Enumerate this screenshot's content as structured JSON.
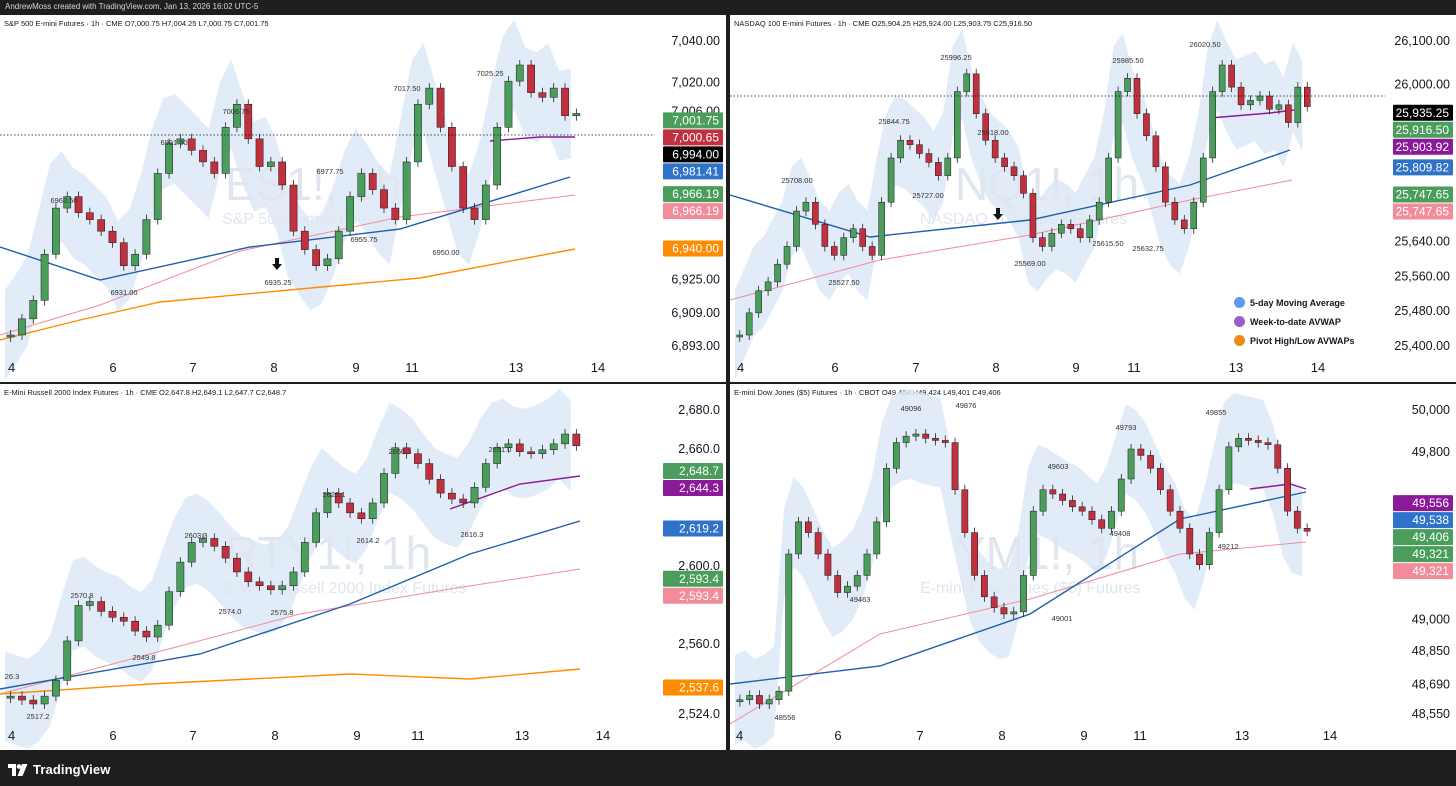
{
  "header": {
    "credit": "AndrewMoss created with TradingView.com, Jan 13, 2026 16:02 UTC-5"
  },
  "footer": {
    "brand": "TradingView"
  },
  "legend": {
    "items": [
      {
        "label": "5-day Moving Average",
        "color": "#5b9bf0"
      },
      {
        "label": "Week-to-date AVWAP",
        "color": "#9a5fc6"
      },
      {
        "label": "Pivot High/Low AVWAPs",
        "color": "#ee8a14"
      }
    ]
  },
  "colors": {
    "up": "#4a9d5b",
    "down": "#c0303f",
    "ma": "#1f5fa9",
    "avwap": "#8b1a9a",
    "pivot": "#ff8c00",
    "band": "#dde9f8",
    "pivotLow": "#f28b9a"
  },
  "charts": [
    {
      "id": "es",
      "title": "S&P 500 E-mini Futures · 1h · CME  O7,000.75  H7,004.25  L7,000.75  C7,001.75",
      "watermark": "ES1!, 1h",
      "subtitle": "S&P 500 E-mini Futures",
      "chart_data": {
        "type": "candlestick",
        "y_ticks": [
          "7,040.00",
          "7,020.00",
          "7,006.00",
          "6,994.00",
          "6,981.41",
          "6,966.19",
          "6,940.00",
          "6,925.00",
          "6,909.00",
          "6,893.00"
        ],
        "x_ticks": [
          "4",
          "6",
          "7",
          "8",
          "9",
          "11",
          "13",
          "14"
        ],
        "annotations": [
          "6963.50",
          "6931.00",
          "6991.50",
          "7006.75",
          "6977.75",
          "6935.25",
          "6955.75",
          "7017.50",
          "6950.00",
          "7025.25"
        ],
        "price_tags": [
          {
            "value": "7,001.75",
            "color": "#4a9d5b"
          },
          {
            "value": "7,000.65",
            "color": "#c0303f"
          },
          {
            "value": "6,994.00",
            "color": "#000000"
          },
          {
            "value": "6,981.41",
            "color": "#2e73c9"
          },
          {
            "value": "6,966.19",
            "color": "#4a9d5b"
          },
          {
            "value": "6,966.19",
            "color": "#f28b9a"
          },
          {
            "value": "6,940.00",
            "color": "#ff8c00"
          }
        ],
        "close_path": [
          6905,
          6912,
          6920,
          6940,
          6960,
          6965,
          6958,
          6955,
          6950,
          6945,
          6935,
          6940,
          6955,
          6975,
          6988,
          6990,
          6985,
          6980,
          6975,
          6995,
          7005,
          6990,
          6978,
          6980,
          6970,
          6950,
          6942,
          6935,
          6938,
          6950,
          6965,
          6975,
          6968,
          6960,
          6955,
          6980,
          7005,
          7012,
          6995,
          6978,
          6960,
          6955,
          6970,
          6995,
          7015,
          7022,
          7010,
          7008,
          7012,
          7000,
          7001
        ]
      }
    },
    {
      "id": "nq",
      "title": "NASDAQ 100 E-mini Futures · 1h · CME  O25,904.25  H25,924.00  L25,903.75  C25,916.50",
      "watermark": "NQ1!, 1h",
      "subtitle": "NASDAQ 100 E-mini Futures",
      "chart_data": {
        "type": "candlestick",
        "y_ticks": [
          "26,100.00",
          "26,000.00",
          "25,935.25",
          "25,916.50",
          "25,903.92",
          "25,809.82",
          "25,747.65",
          "25,640.00",
          "25,560.00",
          "25,480.00",
          "25,400.00"
        ],
        "x_ticks": [
          "4",
          "6",
          "7",
          "8",
          "9",
          "11",
          "13",
          "14"
        ],
        "annotations": [
          "25708.00",
          "25527.50",
          "25844.75",
          "25996.25",
          "25727.00",
          "25818.00",
          "25569.00",
          "25615.50",
          "25985.50",
          "25632.75",
          "26020.50"
        ],
        "price_tags": [
          {
            "value": "25,935.25",
            "color": "#000000"
          },
          {
            "value": "25,916.50",
            "color": "#4a9d5b"
          },
          {
            "value": "25,903.92",
            "color": "#8b1a9a"
          },
          {
            "value": "25,809.82",
            "color": "#2e73c9"
          },
          {
            "value": "25,747.65",
            "color": "#4a9d5b"
          },
          {
            "value": "25,747.65",
            "color": "#f28b9a"
          }
        ],
        "close_path": [
          25400,
          25450,
          25500,
          25520,
          25560,
          25600,
          25680,
          25700,
          25650,
          25600,
          25580,
          25620,
          25640,
          25600,
          25580,
          25700,
          25800,
          25840,
          25830,
          25810,
          25790,
          25760,
          25800,
          25950,
          25990,
          25900,
          25840,
          25800,
          25780,
          25760,
          25720,
          25620,
          25600,
          25630,
          25650,
          25640,
          25620,
          25660,
          25700,
          25800,
          25950,
          25980,
          25900,
          25850,
          25780,
          25700,
          25660,
          25640,
          25700,
          25800,
          25950,
          26010,
          25960,
          25920,
          25930,
          25940,
          25910,
          25920,
          25880,
          25960,
          25916
        ]
      }
    },
    {
      "id": "rty",
      "title": "E-Mini Russell 2000 Index Futures · 1h · CME  O2,647.8  H2,649.1  L2,647.7  C2,648.7",
      "watermark": "RTY1!, 1h",
      "subtitle": "E-Mini Russell 2000 Index Futures",
      "chart_data": {
        "type": "candlestick",
        "y_ticks": [
          "2,680.0",
          "2,660.0",
          "2,648.7",
          "2,644.3",
          "2,619.2",
          "2,600.0",
          "2,593.4",
          "2,593.4",
          "2,560.0",
          "2,537.6",
          "2,524.0"
        ],
        "x_ticks": [
          "4",
          "6",
          "7",
          "8",
          "9",
          "11",
          "13",
          "14"
        ],
        "annotations": [
          "26.3",
          "2517.2",
          "2570.8",
          "2549.8",
          "2603.3",
          "2574.0",
          "2575.8",
          "2626.1",
          "2614.2",
          "2650.3",
          "2616.3",
          "2651.0"
        ],
        "price_tags": [
          {
            "value": "2,648.7",
            "color": "#4a9d5b"
          },
          {
            "value": "2,644.3",
            "color": "#8b1a9a"
          },
          {
            "value": "2,619.2",
            "color": "#2e73c9"
          },
          {
            "value": "2,593.4",
            "color": "#4a9d5b"
          },
          {
            "value": "2,593.4",
            "color": "#f28b9a"
          },
          {
            "value": "2,537.6",
            "color": "#ff8c00"
          }
        ],
        "close_path": [
          2522,
          2520,
          2518,
          2522,
          2530,
          2550,
          2568,
          2570,
          2565,
          2562,
          2560,
          2555,
          2552,
          2558,
          2575,
          2590,
          2600,
          2602,
          2598,
          2592,
          2585,
          2580,
          2578,
          2576,
          2578,
          2585,
          2600,
          2615,
          2625,
          2620,
          2615,
          2612,
          2620,
          2635,
          2648,
          2645,
          2640,
          2632,
          2625,
          2622,
          2620,
          2628,
          2640,
          2648,
          2650,
          2646,
          2645,
          2647,
          2650,
          2655,
          2649
        ]
      }
    },
    {
      "id": "ym",
      "title": "E-mini Dow Jones ($5) Futures · 1h · CBOT  O49,404  H49,424  L49,401  C49,406",
      "watermark": "YM1!, 1h",
      "subtitle": "E-mini Dow Jones ($5) Futures",
      "chart_data": {
        "type": "candlestick",
        "y_ticks": [
          "50,000",
          "49,800",
          "49,556",
          "49,538",
          "49,406",
          "49,321",
          "49,321",
          "49,000",
          "48,850",
          "48,690",
          "48,550"
        ],
        "x_ticks": [
          "4",
          "6",
          "7",
          "8",
          "9",
          "11",
          "13",
          "14"
        ],
        "annotations": [
          "48556",
          "49463",
          "49096",
          "49876",
          "49603",
          "49001",
          "49408",
          "49793",
          "49212",
          "49855"
        ],
        "price_tags": [
          {
            "value": "49,556",
            "color": "#8b1a9a"
          },
          {
            "value": "49,538",
            "color": "#2e73c9"
          },
          {
            "value": "49,406",
            "color": "#4a9d5b"
          },
          {
            "value": "49,321",
            "color": "#4a9d5b"
          },
          {
            "value": "49,321",
            "color": "#f28b9a"
          }
        ],
        "close_path": [
          48620,
          48640,
          48600,
          48620,
          48660,
          49300,
          49450,
          49400,
          49300,
          49200,
          49120,
          49150,
          49200,
          49300,
          49450,
          49700,
          49820,
          49850,
          49860,
          49840,
          49830,
          49820,
          49600,
          49400,
          49200,
          49100,
          49050,
          49020,
          49030,
          49200,
          49500,
          49600,
          49580,
          49550,
          49520,
          49500,
          49460,
          49420,
          49500,
          49650,
          49790,
          49760,
          49700,
          49600,
          49500,
          49420,
          49300,
          49250,
          49400,
          49600,
          49800,
          49840,
          49830,
          49820,
          49810,
          49700,
          49500,
          49420,
          49406
        ]
      }
    }
  ]
}
